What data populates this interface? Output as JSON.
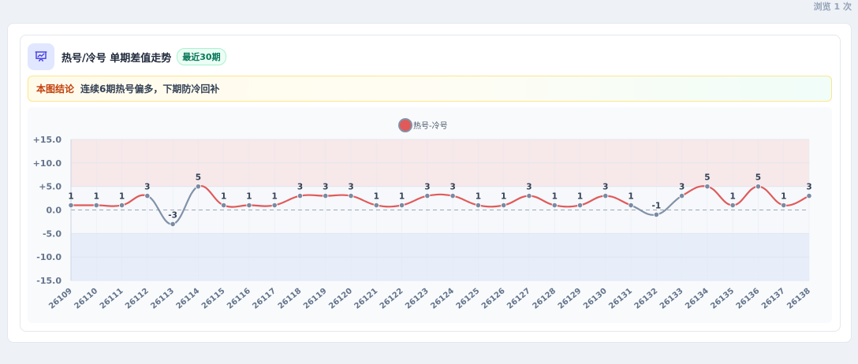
{
  "views_text": "浏览 1 次",
  "header": {
    "title": "热号/冷号 单期差值走势",
    "badge": "最近30期",
    "icon": "presentation-chart-icon"
  },
  "conclusion": {
    "label": "本图结论",
    "text": "连续6期热号偏多，下期防冷回补"
  },
  "colors": {
    "positive_line": "#e05a5a",
    "negative_line": "#8192a8",
    "hot_band": "#f7e8ea",
    "cold_band": "#e7eefa",
    "accent": "#4f46e5"
  },
  "chart_data": {
    "type": "line",
    "title": "",
    "xlabel": "",
    "ylabel": "",
    "legend_position": "top-center",
    "ylim": [
      -15,
      15
    ],
    "yticks": [
      "+15.0",
      "+10.0",
      "+5.0",
      "0.0",
      "-5.0",
      "-10.0",
      "-15.0"
    ],
    "categories": [
      "26109",
      "26110",
      "26111",
      "26112",
      "26113",
      "26114",
      "26115",
      "26116",
      "26117",
      "26118",
      "26119",
      "26120",
      "26121",
      "26122",
      "26123",
      "26124",
      "26125",
      "26126",
      "26127",
      "26128",
      "26129",
      "26130",
      "26131",
      "26132",
      "26133",
      "26134",
      "26135",
      "26136",
      "26137",
      "26138"
    ],
    "series": [
      {
        "name": "热号-冷号",
        "values": [
          1,
          1,
          1,
          3,
          -3,
          5,
          1,
          1,
          1,
          3,
          3,
          3,
          1,
          1,
          3,
          3,
          1,
          1,
          3,
          1,
          1,
          3,
          1,
          -1,
          3,
          5,
          1,
          5,
          1,
          3
        ]
      }
    ]
  }
}
